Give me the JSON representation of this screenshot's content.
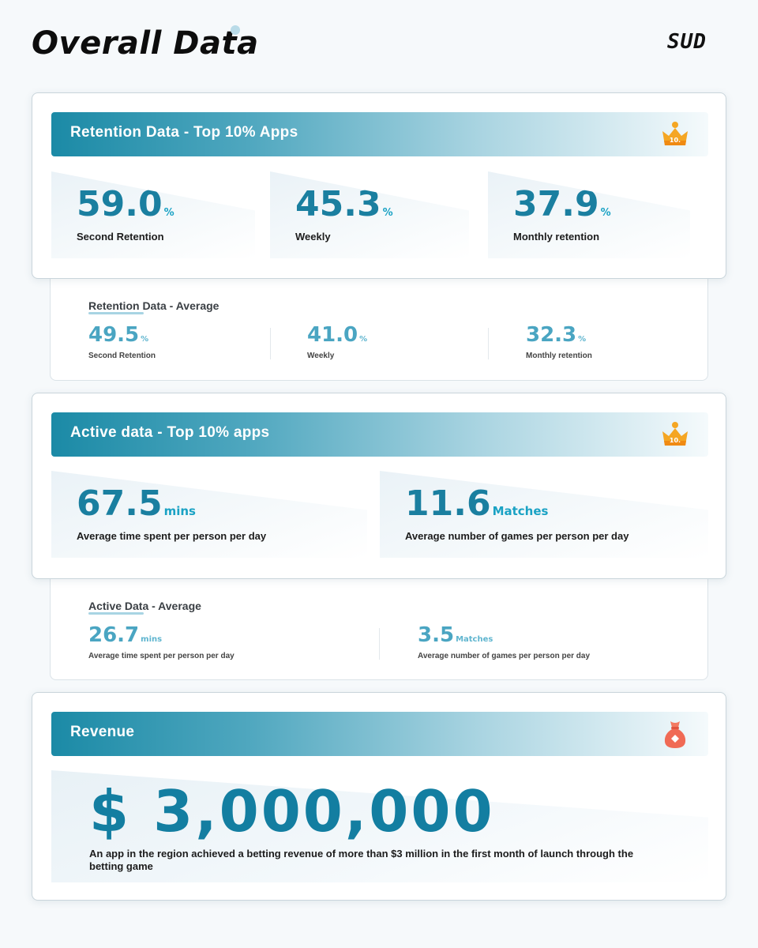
{
  "page": {
    "title": "Overall Data",
    "logo": "SUD"
  },
  "colors": {
    "accent": "#1b8aa6",
    "value": "#1a7fa0",
    "average_value": "#4aa5c2",
    "crown": "#f5a623",
    "moneybag": "#f06a55"
  },
  "retention_top": {
    "header": "Retention Data - Top 10% Apps",
    "badge_icon": "crown-icon",
    "badge_text": "10.",
    "stats": [
      {
        "value": "59.0",
        "unit": "%",
        "label": "Second Retention"
      },
      {
        "value": "45.3",
        "unit": "%",
        "label": "Weekly"
      },
      {
        "value": "37.9",
        "unit": "%",
        "label": "Monthly retention"
      }
    ]
  },
  "retention_avg": {
    "title": "Retention Data - Average",
    "stats": [
      {
        "value": "49.5",
        "unit": "%",
        "label": "Second Retention"
      },
      {
        "value": "41.0",
        "unit": "%",
        "label": "Weekly"
      },
      {
        "value": "32.3",
        "unit": "%",
        "label": "Monthly retention"
      }
    ]
  },
  "active_top": {
    "header": "Active data - Top 10% apps",
    "badge_icon": "crown-icon",
    "badge_text": "10.",
    "stats": [
      {
        "value": "67.5",
        "unit": "mins",
        "label": "Average time spent per person per day"
      },
      {
        "value": "11.6",
        "unit": "Matches",
        "label": "Average number of games per person per day"
      }
    ]
  },
  "active_avg": {
    "title": "Active Data - Average",
    "stats": [
      {
        "value": "26.7",
        "unit": "mins",
        "label": "Average time spent per person per day"
      },
      {
        "value": "3.5",
        "unit": "Matches",
        "label": "Average number of games per person per day"
      }
    ]
  },
  "revenue": {
    "header": "Revenue",
    "badge_icon": "money-bag-icon",
    "amount": "$ 3,000,000",
    "description": "An app in the region achieved a betting revenue of more than $3 million in the first month of launch through the betting game"
  }
}
